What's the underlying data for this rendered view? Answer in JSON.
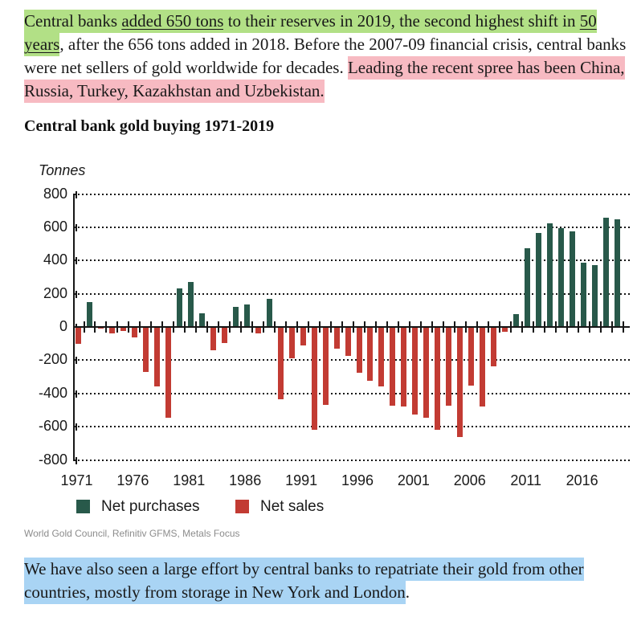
{
  "intro_paragraph": {
    "segments": [
      {
        "text": "Central banks ",
        "mark": "green"
      },
      {
        "text": "added 650 tons",
        "mark": "green",
        "link": true
      },
      {
        "text": " to their reserves in 2019, the second highest shift in ",
        "mark": "green"
      },
      {
        "text": "50 years",
        "mark": "green",
        "link": true
      },
      {
        "text": ", after the 656 tons added in 2018. Before the 2007-09 financial crisis, central banks were net sellers of gold worldwide for decades. "
      },
      {
        "text": "Leading the recent spree has been China, Russia, Turkey, Kazakhstan and Uzbekistan.",
        "mark": "pink"
      }
    ]
  },
  "chart_heading": "Central bank gold buying 1971-2019",
  "chart_data": {
    "type": "bar",
    "title": "Central bank gold buying 1971-2019",
    "unit_label": "Tonnes",
    "ylabel": "Tonnes",
    "xlabel": "",
    "ylim": [
      -800,
      800
    ],
    "yticks": [
      800,
      600,
      400,
      200,
      0,
      -200,
      -400,
      -600,
      -800
    ],
    "xticks": [
      1971,
      1976,
      1981,
      1986,
      1991,
      1996,
      2001,
      2006,
      2011,
      2016
    ],
    "grid": "horizontal-dotted",
    "legend_position": "bottom",
    "legend": [
      {
        "label": "Net purchases",
        "color": "#28594a"
      },
      {
        "label": "Net sales",
        "color": "#c23b33"
      }
    ],
    "years": [
      1971,
      1972,
      1973,
      1974,
      1975,
      1976,
      1977,
      1978,
      1979,
      1980,
      1981,
      1982,
      1983,
      1984,
      1985,
      1986,
      1987,
      1988,
      1989,
      1990,
      1991,
      1992,
      1993,
      1994,
      1995,
      1996,
      1997,
      1998,
      1999,
      2000,
      2001,
      2002,
      2003,
      2004,
      2005,
      2006,
      2007,
      2008,
      2009,
      2010,
      2011,
      2012,
      2013,
      2014,
      2015,
      2016,
      2017,
      2018,
      2019
    ],
    "values": [
      -100,
      150,
      -10,
      -40,
      -25,
      -65,
      -270,
      -360,
      -545,
      230,
      270,
      80,
      -140,
      -95,
      120,
      135,
      -40,
      170,
      -435,
      -190,
      -110,
      -620,
      -470,
      -130,
      -175,
      -275,
      -325,
      -360,
      -475,
      -480,
      -525,
      -545,
      -620,
      -475,
      -660,
      -355,
      -480,
      -235,
      -30,
      75,
      475,
      565,
      625,
      595,
      575,
      385,
      370,
      656,
      650
    ]
  },
  "source_line": "World Gold Council, Refinitiv GFMS, Metals Focus",
  "closing_paragraph": {
    "segments": [
      {
        "text": "We have also seen a large effort by central banks to repatriate their gold from other countries, mostly from storage in New York and London",
        "mark": "blue"
      },
      {
        "text": "."
      }
    ]
  },
  "colors": {
    "green_highlight": "#b2e086",
    "pink_highlight": "#f7bac2",
    "blue_highlight": "#a9d4f4",
    "bar_positive": "#28594a",
    "bar_negative": "#c23b33",
    "axis": "#161616",
    "text": "#191919",
    "source_text": "#8c8c8c"
  }
}
